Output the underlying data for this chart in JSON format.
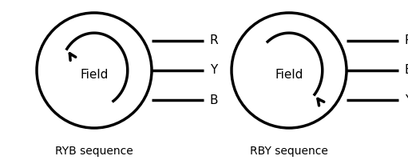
{
  "bg_color": "#ffffff",
  "line_color": "#000000",
  "text_color": "#000000",
  "left_labels": [
    "R",
    "Y",
    "B"
  ],
  "right_labels": [
    "R",
    "B",
    "Y"
  ],
  "left_caption": "RYB sequence",
  "right_caption": "RBY sequence",
  "field_text": "Field"
}
